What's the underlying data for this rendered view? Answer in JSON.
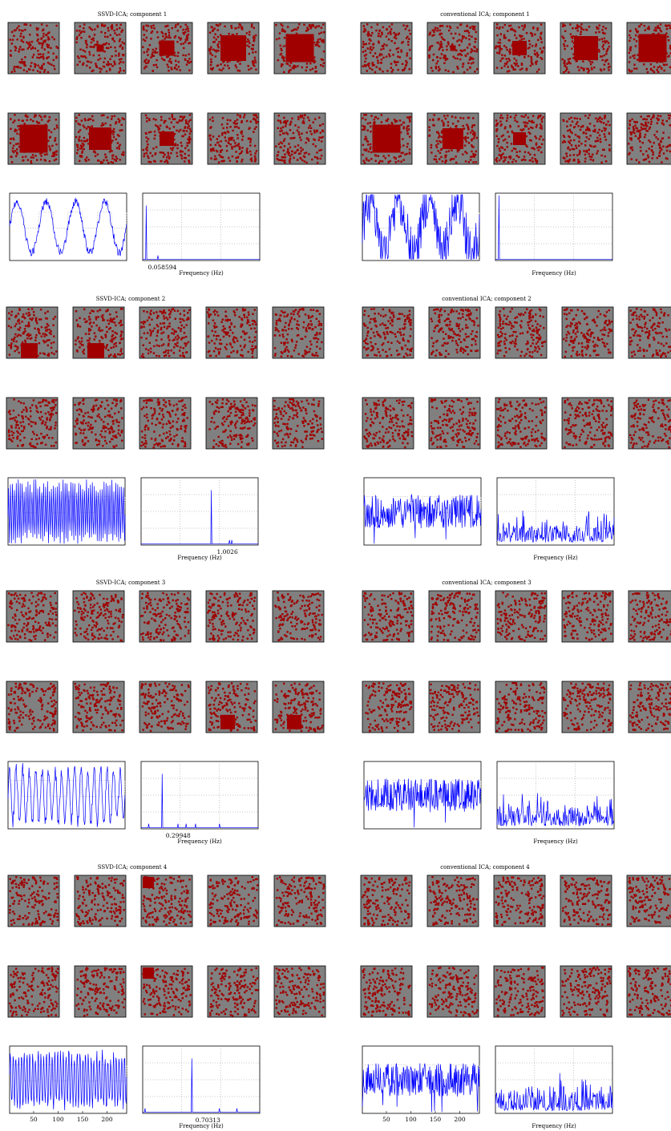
{
  "colors": {
    "map_background": "#808080",
    "active_voxel": "#a00000",
    "signal_line": "#0000ff",
    "stimulus_reference": "#c8c8c8",
    "grid": "#909090"
  },
  "chart_data": [
    {
      "type": "figure-panel",
      "title": "SSVD-ICA; component 1",
      "spatial_maps": 10,
      "active_block": [
        0,
        0.25,
        0.55,
        0.9,
        1,
        1,
        0.8,
        0.5,
        0,
        0
      ],
      "timecourse": {
        "shape": "sinusoid",
        "cycles": 4,
        "noise": 0.06
      },
      "spectrum": {
        "xlabel": "Frequency (Hz)",
        "peak_hz": 0.058594,
        "peak_label": "0.058594",
        "peak_position": 0.03
      }
    },
    {
      "type": "figure-panel",
      "title": "conventional ICA; component 1",
      "spatial_maps": 10,
      "active_block": [
        0,
        0.2,
        0.5,
        0.85,
        1,
        1,
        0.75,
        0.45,
        0,
        0
      ],
      "timecourse": {
        "shape": "sinusoid",
        "cycles": 4,
        "noise": 0.35
      },
      "spectrum": {
        "xlabel": "Frequency (Hz)",
        "peak_hz": null,
        "peak_label": "",
        "peak_position": 0.03
      }
    },
    {
      "type": "figure-panel",
      "title": "SSVD-ICA; component 2",
      "spatial_maps": 10,
      "active_block": [
        0.6,
        0.6,
        0,
        0,
        0,
        0,
        0,
        0,
        0,
        0
      ],
      "timecourse": {
        "shape": "fast-oscillation",
        "cycles": 60,
        "noise": 0.1
      },
      "spectrum": {
        "xlabel": "Frequency (Hz)",
        "peak_hz": 1.0026,
        "peak_label": "1.0026",
        "peak_position": 0.6
      }
    },
    {
      "type": "figure-panel",
      "title": "conventional ICA; component 2",
      "spatial_maps": 10,
      "active_block": [
        0,
        0,
        0,
        0,
        0,
        0,
        0,
        0,
        0,
        0
      ],
      "timecourse": {
        "shape": "noise",
        "cycles": 0,
        "noise": 0.5
      },
      "spectrum": {
        "xlabel": "Frequency (Hz)",
        "peak_hz": null,
        "peak_label": "",
        "peak_position": -1
      }
    },
    {
      "type": "figure-panel",
      "title": "SSVD-ICA; component 3",
      "spatial_maps": 10,
      "active_block": [
        0,
        0,
        0,
        0,
        0,
        0,
        0,
        0,
        0.5,
        0.5
      ],
      "timecourse": {
        "shape": "oscillation",
        "cycles": 18,
        "noise": 0.1
      },
      "spectrum": {
        "xlabel": "Frequency (Hz)",
        "peak_hz": 0.29948,
        "peak_label": "0.29948",
        "peak_position": 0.18
      }
    },
    {
      "type": "figure-panel",
      "title": "conventional ICA; component 3",
      "spatial_maps": 10,
      "active_block": [
        0,
        0,
        0,
        0,
        0,
        0,
        0,
        0,
        0,
        0
      ],
      "timecourse": {
        "shape": "noise",
        "cycles": 0,
        "noise": 0.5
      },
      "spectrum": {
        "xlabel": "Frequency (Hz)",
        "peak_hz": null,
        "peak_label": "",
        "peak_position": -1
      }
    },
    {
      "type": "figure-panel",
      "title": "SSVD-ICA; component 4",
      "spatial_maps": 10,
      "active_block": [
        0,
        0,
        0.4,
        0,
        0,
        0,
        0,
        0.4,
        0,
        0
      ],
      "timecourse": {
        "shape": "fast-oscillation",
        "cycles": 42,
        "noise": 0.1
      },
      "spectrum": {
        "xlabel": "Frequency (Hz)",
        "peak_hz": 0.70313,
        "peak_label": "0.70313",
        "peak_position": 0.42
      }
    },
    {
      "type": "figure-panel",
      "title": "conventional ICA; component 4",
      "spatial_maps": 10,
      "active_block": [
        0,
        0,
        0,
        0,
        0,
        0,
        0,
        0,
        0,
        0
      ],
      "timecourse": {
        "shape": "noise",
        "cycles": 0,
        "noise": 0.5
      },
      "spectrum": {
        "xlabel": "Frequency (Hz)",
        "peak_hz": null,
        "peak_label": "",
        "peak_position": 0.55
      }
    }
  ],
  "time_axis": {
    "ticks": [
      "50",
      "100",
      "150",
      "200"
    ],
    "range": [
      1,
      240
    ]
  }
}
